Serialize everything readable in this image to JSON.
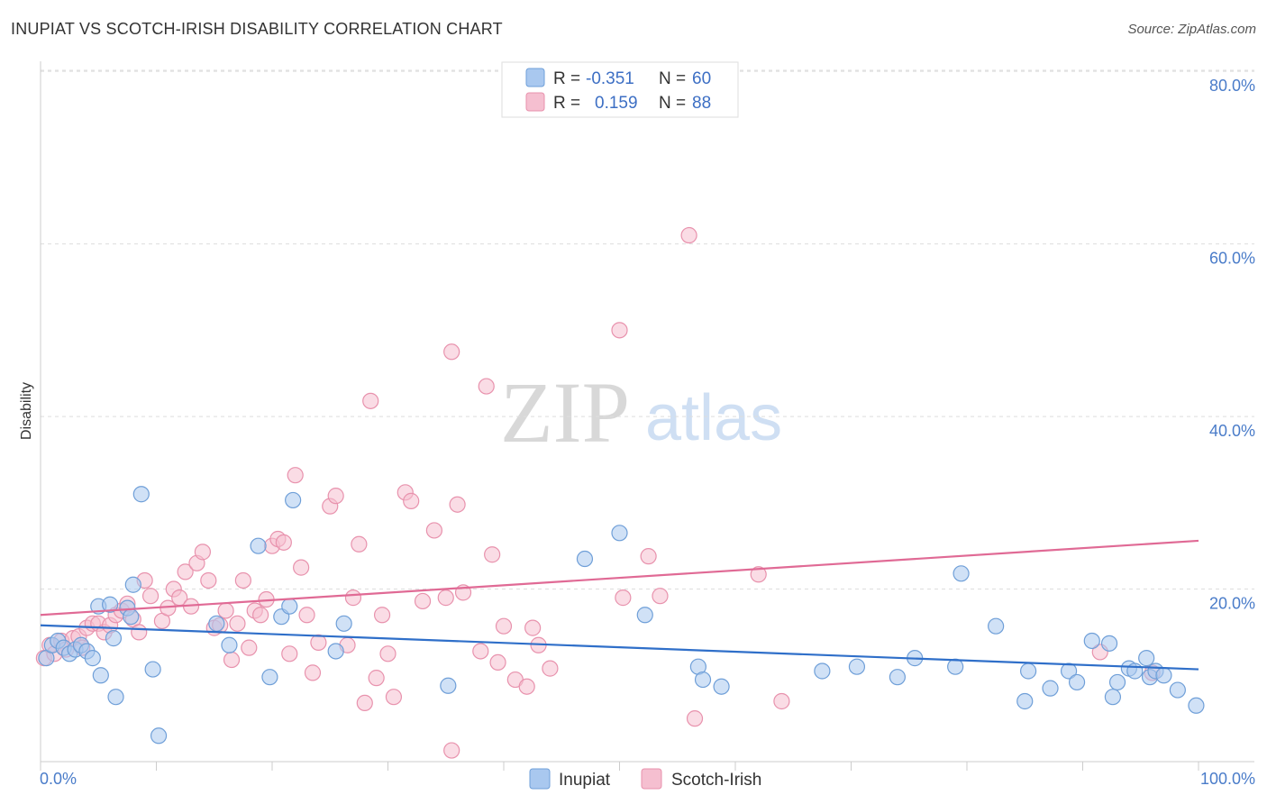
{
  "title": "INUPIAT VS SCOTCH-IRISH DISABILITY CORRELATION CHART",
  "source": "Source: ZipAtlas.com",
  "watermark": {
    "zip": "ZIP",
    "atlas": "atlas"
  },
  "colors": {
    "inupiat_fill": "#a9c8ef",
    "inupiat_stroke": "#6f9fd8",
    "inupiat_line": "#2f6fc9",
    "scotch_fill": "#f5bfd0",
    "scotch_stroke": "#e892ad",
    "scotch_line": "#e06a95",
    "tick_text": "#4a7cc9",
    "grid": "#dddddd"
  },
  "legend": {
    "inupiat": {
      "r_label": "R =",
      "r_value": "-0.351",
      "n_label": "N =",
      "n_value": "60"
    },
    "scotch": {
      "r_label": "R =",
      "r_value": "0.159",
      "n_label": "N =",
      "n_value": "88"
    }
  },
  "chart_data": {
    "type": "scatter",
    "xlabel": "",
    "ylabel": "Disability",
    "xlim": [
      0,
      100
    ],
    "ylim": [
      0,
      82
    ],
    "x_ticks": [
      {
        "value": 0,
        "label": "0.0%"
      },
      {
        "value": 100,
        "label": "100.0%"
      }
    ],
    "y_ticks": [
      {
        "value": 20,
        "label": "20.0%"
      },
      {
        "value": 40,
        "label": "40.0%"
      },
      {
        "value": 60,
        "label": "60.0%"
      },
      {
        "value": 80,
        "label": "80.0%"
      }
    ],
    "grid": true,
    "legend_position": "top-center",
    "series": [
      {
        "name": "Inupiat",
        "trend": {
          "x0": 0,
          "y0": 15.8,
          "x1": 100,
          "y1": 10.7
        },
        "points": [
          [
            0.5,
            12.0
          ],
          [
            1.0,
            13.5
          ],
          [
            1.5,
            14.0
          ],
          [
            2.0,
            13.2
          ],
          [
            2.5,
            12.5
          ],
          [
            3.0,
            13.0
          ],
          [
            3.5,
            13.5
          ],
          [
            4.0,
            12.8
          ],
          [
            4.5,
            12.0
          ],
          [
            5.0,
            18.0
          ],
          [
            5.2,
            10.0
          ],
          [
            6.0,
            18.2
          ],
          [
            6.3,
            14.3
          ],
          [
            6.5,
            7.5
          ],
          [
            7.5,
            17.8
          ],
          [
            7.8,
            16.8
          ],
          [
            8.0,
            20.5
          ],
          [
            8.7,
            31.0
          ],
          [
            9.7,
            10.7
          ],
          [
            10.2,
            3.0
          ],
          [
            15.2,
            16.0
          ],
          [
            16.3,
            13.5
          ],
          [
            18.8,
            25.0
          ],
          [
            19.8,
            9.8
          ],
          [
            20.8,
            16.8
          ],
          [
            21.5,
            18.0
          ],
          [
            21.8,
            30.3
          ],
          [
            25.5,
            12.8
          ],
          [
            26.2,
            16.0
          ],
          [
            35.2,
            8.8
          ],
          [
            47.0,
            23.5
          ],
          [
            50.0,
            26.5
          ],
          [
            52.2,
            17.0
          ],
          [
            56.8,
            11.0
          ],
          [
            57.2,
            9.5
          ],
          [
            58.8,
            8.7
          ],
          [
            67.5,
            10.5
          ],
          [
            70.5,
            11.0
          ],
          [
            74.0,
            9.8
          ],
          [
            75.5,
            12.0
          ],
          [
            79.0,
            11.0
          ],
          [
            79.5,
            21.8
          ],
          [
            82.5,
            15.7
          ],
          [
            85.0,
            7.0
          ],
          [
            85.3,
            10.5
          ],
          [
            87.2,
            8.5
          ],
          [
            88.8,
            10.5
          ],
          [
            89.5,
            9.2
          ],
          [
            90.8,
            14.0
          ],
          [
            92.3,
            13.7
          ],
          [
            92.6,
            7.5
          ],
          [
            93.0,
            9.2
          ],
          [
            94.0,
            10.8
          ],
          [
            94.5,
            10.5
          ],
          [
            95.5,
            12.0
          ],
          [
            95.8,
            9.8
          ],
          [
            96.3,
            10.5
          ],
          [
            97.0,
            10.0
          ],
          [
            98.2,
            8.3
          ],
          [
            99.8,
            6.5
          ]
        ]
      },
      {
        "name": "Scotch-Irish",
        "trend": {
          "x0": 0,
          "y0": 17.0,
          "x1": 100,
          "y1": 25.6
        },
        "points": [
          [
            0.3,
            12.0
          ],
          [
            0.8,
            13.5
          ],
          [
            1.2,
            12.5
          ],
          [
            1.8,
            14.0
          ],
          [
            2.2,
            13.0
          ],
          [
            2.8,
            14.3
          ],
          [
            3.3,
            14.5
          ],
          [
            3.6,
            13.2
          ],
          [
            4.0,
            15.5
          ],
          [
            4.5,
            16.0
          ],
          [
            5.0,
            16.0
          ],
          [
            5.5,
            15.0
          ],
          [
            6.0,
            15.8
          ],
          [
            6.5,
            17.0
          ],
          [
            7.0,
            17.5
          ],
          [
            7.5,
            18.3
          ],
          [
            8.0,
            16.5
          ],
          [
            8.5,
            15.0
          ],
          [
            9.0,
            21.0
          ],
          [
            9.5,
            19.2
          ],
          [
            10.5,
            16.3
          ],
          [
            11.0,
            17.8
          ],
          [
            11.5,
            20.0
          ],
          [
            12.0,
            19.0
          ],
          [
            12.5,
            22.0
          ],
          [
            13.0,
            18.0
          ],
          [
            13.5,
            23.0
          ],
          [
            14.0,
            24.3
          ],
          [
            14.5,
            21.0
          ],
          [
            15.0,
            15.5
          ],
          [
            15.5,
            15.8
          ],
          [
            16.0,
            17.5
          ],
          [
            16.5,
            11.8
          ],
          [
            17.0,
            16.0
          ],
          [
            17.5,
            21.0
          ],
          [
            18.0,
            13.2
          ],
          [
            18.5,
            17.5
          ],
          [
            19.0,
            17.0
          ],
          [
            19.5,
            18.8
          ],
          [
            20.0,
            25.0
          ],
          [
            20.5,
            25.8
          ],
          [
            21.0,
            25.4
          ],
          [
            21.5,
            12.5
          ],
          [
            22.0,
            33.2
          ],
          [
            22.5,
            22.5
          ],
          [
            23.0,
            17.0
          ],
          [
            23.5,
            10.3
          ],
          [
            24.0,
            13.8
          ],
          [
            25.0,
            29.6
          ],
          [
            25.5,
            30.8
          ],
          [
            26.5,
            13.5
          ],
          [
            27.0,
            19.0
          ],
          [
            27.5,
            25.2
          ],
          [
            28.0,
            6.8
          ],
          [
            28.5,
            41.8
          ],
          [
            29.0,
            9.7
          ],
          [
            29.5,
            17.0
          ],
          [
            30.0,
            12.5
          ],
          [
            30.5,
            7.5
          ],
          [
            31.5,
            31.2
          ],
          [
            32.0,
            30.2
          ],
          [
            33.0,
            18.6
          ],
          [
            34.0,
            26.8
          ],
          [
            35.0,
            19.0
          ],
          [
            35.5,
            1.3
          ],
          [
            35.5,
            47.5
          ],
          [
            36.0,
            29.8
          ],
          [
            36.5,
            19.6
          ],
          [
            38.0,
            12.8
          ],
          [
            38.5,
            43.5
          ],
          [
            39.0,
            24.0
          ],
          [
            39.5,
            11.5
          ],
          [
            40.0,
            15.7
          ],
          [
            41.0,
            9.5
          ],
          [
            42.0,
            8.7
          ],
          [
            42.5,
            15.5
          ],
          [
            43.0,
            13.5
          ],
          [
            44.0,
            10.8
          ],
          [
            50.0,
            50.0
          ],
          [
            50.3,
            19.0
          ],
          [
            52.5,
            23.8
          ],
          [
            53.5,
            19.2
          ],
          [
            56.0,
            61.0
          ],
          [
            56.5,
            5.0
          ],
          [
            62.0,
            21.7
          ],
          [
            64.0,
            7.0
          ],
          [
            91.5,
            12.7
          ],
          [
            96.0,
            10.3
          ]
        ]
      }
    ]
  },
  "bottom_legend": [
    {
      "label": "Inupiat"
    },
    {
      "label": "Scotch-Irish"
    }
  ]
}
